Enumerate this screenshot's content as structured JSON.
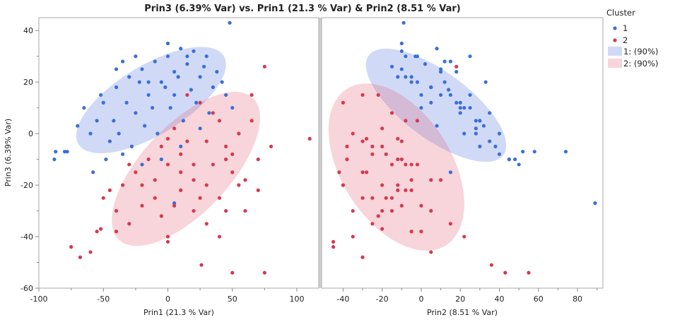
{
  "chart_data": {
    "type": "scatter",
    "title": "Prin3 (6.39% Var) vs. Prin1 (21.3 % Var) & Prin2 (8.51 % Var)",
    "ylabel": "Prin3 (6.39% Var)",
    "ylim": [
      -60,
      45
    ],
    "yticks": [
      -60,
      -40,
      -20,
      0,
      20,
      40
    ],
    "grid": false,
    "legend_placement": "right",
    "panels": [
      {
        "xlabel": "Prin1 (21.3 % Var)",
        "xvar": 0,
        "xlim": [
          -100,
          117
        ],
        "xticks": [
          -100,
          -50,
          0,
          50,
          100
        ],
        "minor": [
          -75,
          -25,
          25,
          75
        ]
      },
      {
        "xlabel": "Prin2 (8.51 % Var)",
        "xvar": 1,
        "xlim": [
          -51,
          93
        ],
        "xticks": [
          -40,
          -20,
          0,
          20,
          40,
          60,
          80
        ],
        "minor": [
          -30,
          -10,
          10,
          30,
          50,
          70,
          90
        ]
      }
    ],
    "legend": {
      "title": "Cluster",
      "items": [
        "1",
        "2",
        "1: (90%)",
        "2: (90%)"
      ]
    },
    "point_fields": [
      "Prin1",
      "Prin2",
      "Prin3"
    ],
    "clusters": [
      {
        "name": "1",
        "color": "#3b6fd8",
        "ellipse_fill": "rgba(80,120,225,0.27)",
        "ellipse_90": [
          {
            "center": [
              -13,
              13
            ],
            "axis_a": [
              57,
              16.5
            ],
            "axis_b": [
              -11,
              12.4
            ]
          },
          {
            "center": [
              7.6,
              11
            ],
            "axis_a": [
              34.5,
              -19.3
            ],
            "axis_b": [
              -10,
              -10.5
            ]
          }
        ],
        "points": [
          [
            48,
            -9,
            43
          ],
          [
            -87,
            52,
            -7
          ],
          [
            -78,
            58,
            -7
          ],
          [
            -88,
            48,
            -10
          ],
          [
            5,
            89,
            -27
          ],
          [
            -80,
            74,
            -7
          ],
          [
            -50,
            20,
            12
          ],
          [
            -40,
            5,
            18
          ],
          [
            -30,
            -5,
            22
          ],
          [
            -20,
            10,
            25
          ],
          [
            -10,
            15,
            28
          ],
          [
            0,
            -3,
            30
          ],
          [
            10,
            8,
            33
          ],
          [
            20,
            -10,
            32
          ],
          [
            30,
            25,
            30
          ],
          [
            -55,
            30,
            5
          ],
          [
            -60,
            28,
            0
          ],
          [
            -45,
            35,
            -3
          ],
          [
            -35,
            40,
            -8
          ],
          [
            -25,
            20,
            8
          ],
          [
            -15,
            0,
            15
          ],
          [
            -5,
            12,
            20
          ],
          [
            5,
            18,
            24
          ],
          [
            15,
            2,
            27
          ],
          [
            25,
            -8,
            22
          ],
          [
            35,
            5,
            18
          ],
          [
            45,
            15,
            15
          ],
          [
            -65,
            22,
            10
          ],
          [
            -70,
            32,
            3
          ],
          [
            -52,
            10,
            15
          ],
          [
            -42,
            28,
            5
          ],
          [
            -32,
            18,
            12
          ],
          [
            -22,
            -2,
            20
          ],
          [
            -12,
            25,
            10
          ],
          [
            -2,
            5,
            18
          ],
          [
            8,
            -12,
            22
          ],
          [
            18,
            14,
            17
          ],
          [
            28,
            -15,
            26
          ],
          [
            38,
            10,
            24
          ],
          [
            -48,
            45,
            -10
          ],
          [
            -38,
            22,
            0
          ],
          [
            -28,
            30,
            -5
          ],
          [
            -18,
            8,
            3
          ],
          [
            -8,
            40,
            0
          ],
          [
            2,
            20,
            10
          ],
          [
            12,
            30,
            5
          ],
          [
            22,
            5,
            12
          ],
          [
            32,
            35,
            8
          ],
          [
            42,
            -5,
            20
          ],
          [
            -58,
            15,
            -15
          ],
          [
            -20,
            50,
            -12
          ],
          [
            -5,
            45,
            -10
          ],
          [
            10,
            38,
            -5
          ],
          [
            25,
            28,
            2
          ],
          [
            0,
            -10,
            35
          ],
          [
            -25,
            -8,
            30
          ],
          [
            15,
            -2,
            30
          ],
          [
            -35,
            12,
            28
          ],
          [
            50,
            0,
            10
          ],
          [
            -40,
            -10,
            25
          ],
          [
            5,
            25,
            15
          ],
          [
            -15,
            33,
            20
          ]
        ]
      },
      {
        "name": "2",
        "color": "#d6394f",
        "ellipse_fill": "rgba(225,100,120,0.27)",
        "ellipse_90": [
          {
            "center": [
              14,
              -13.7
            ],
            "axis_a": [
              52,
              27.5
            ],
            "axis_b": [
              24.5,
              -11.8
            ]
          },
          {
            "center": [
              -12.7,
              -13
            ],
            "axis_a": [
              25.5,
              -30.3
            ],
            "axis_b": [
              -23.6,
              -11.6
            ]
          }
        ],
        "points": [
          [
            110,
            -12,
            -2
          ],
          [
            -75,
            -45,
            -44
          ],
          [
            -68,
            -30,
            -48
          ],
          [
            26,
            36,
            -51
          ],
          [
            50,
            43,
            -54
          ],
          [
            75,
            55,
            -54
          ],
          [
            -60,
            5,
            -46
          ],
          [
            -55,
            -5,
            -38
          ],
          [
            -52,
            -20,
            -37
          ],
          [
            -40,
            -15,
            -30
          ],
          [
            -30,
            -25,
            -35
          ],
          [
            -20,
            -10,
            -28
          ],
          [
            -10,
            -30,
            -25
          ],
          [
            0,
            -35,
            -40
          ],
          [
            10,
            -5,
            -22
          ],
          [
            20,
            -20,
            -30
          ],
          [
            30,
            -40,
            -20
          ],
          [
            40,
            -15,
            -25
          ],
          [
            50,
            -28,
            -15
          ],
          [
            60,
            5,
            -18
          ],
          [
            70,
            -10,
            -10
          ],
          [
            80,
            -20,
            -5
          ],
          [
            75,
            18,
            26
          ],
          [
            65,
            -2,
            5
          ],
          [
            55,
            -35,
            0
          ],
          [
            45,
            -25,
            -5
          ],
          [
            35,
            -15,
            8
          ],
          [
            25,
            -40,
            12
          ],
          [
            15,
            -30,
            15
          ],
          [
            5,
            -20,
            2
          ],
          [
            -5,
            -38,
            -5
          ],
          [
            -15,
            -12,
            -10
          ],
          [
            -25,
            -30,
            -15
          ],
          [
            -35,
            -20,
            -20
          ],
          [
            -45,
            -8,
            -22
          ],
          [
            -50,
            -25,
            -25
          ],
          [
            0,
            -15,
            -12
          ],
          [
            10,
            -25,
            -8
          ],
          [
            20,
            -5,
            -12
          ],
          [
            30,
            -30,
            -3
          ],
          [
            40,
            -8,
            5
          ],
          [
            50,
            -18,
            -8
          ],
          [
            60,
            -35,
            -30
          ],
          [
            70,
            -12,
            -22
          ],
          [
            -10,
            -5,
            -18
          ],
          [
            -20,
            -40,
            -20
          ],
          [
            30,
            15,
            -35
          ],
          [
            40,
            22,
            -40
          ],
          [
            20,
            10,
            -18
          ],
          [
            10,
            -42,
            -15
          ],
          [
            -5,
            -22,
            -32
          ],
          [
            15,
            -10,
            -3
          ],
          [
            35,
            -2,
            -12
          ],
          [
            45,
            -38,
            -10
          ],
          [
            55,
            -12,
            -20
          ],
          [
            0,
            -28,
            -2
          ],
          [
            25,
            -18,
            -25
          ],
          [
            -30,
            -8,
            -12
          ],
          [
            5,
            0,
            -28
          ],
          [
            65,
            -22,
            15
          ],
          [
            -40,
            0,
            -38
          ],
          [
            0,
            -45,
            -42
          ],
          [
            45,
            5,
            -30
          ]
        ]
      }
    ]
  }
}
